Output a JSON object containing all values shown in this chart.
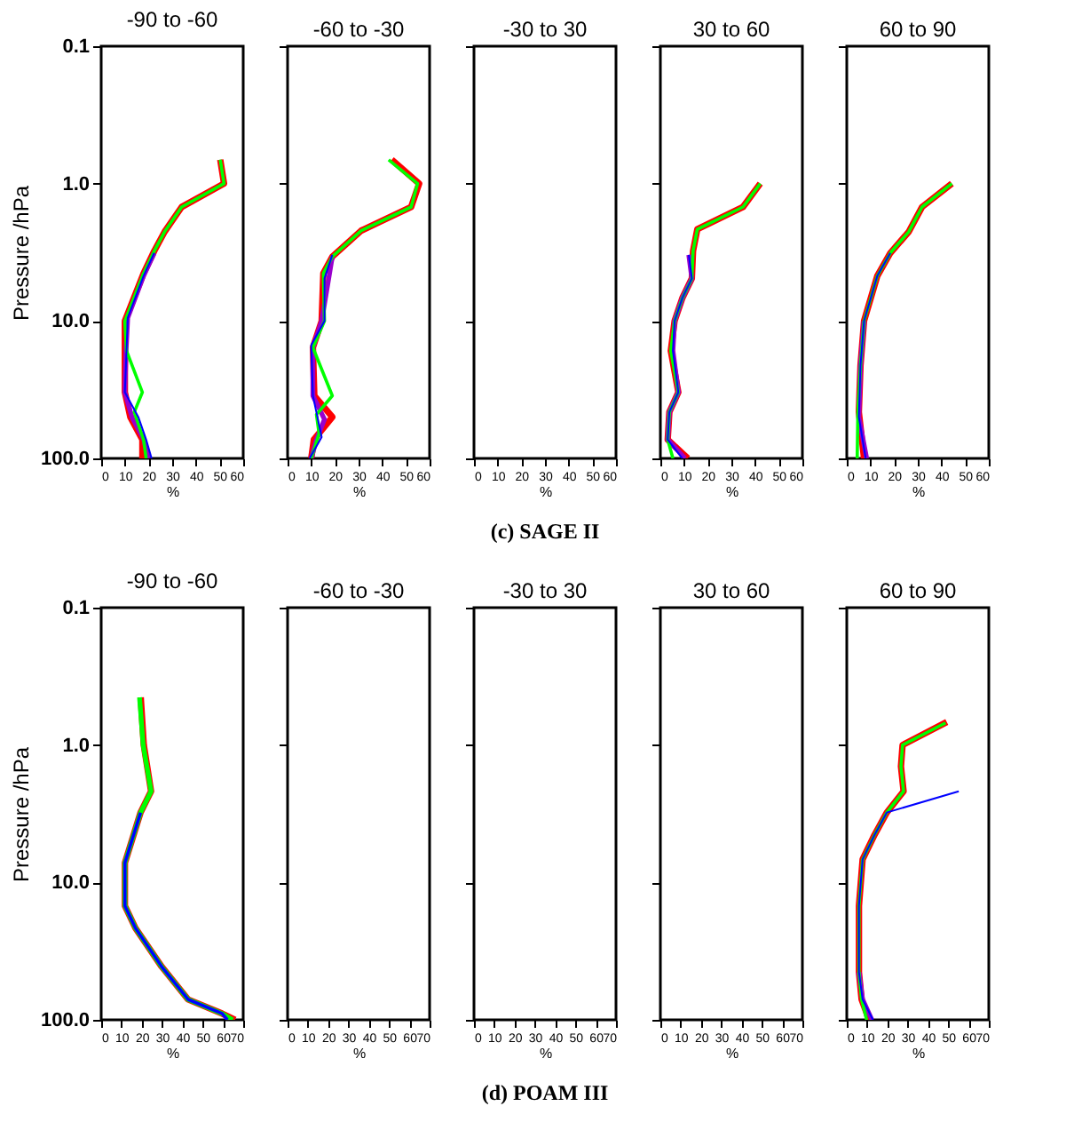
{
  "chart_data": [
    {
      "type": "line",
      "title": "-90 to -60",
      "xlabel": "%",
      "ylabel": "Pressure /hPa",
      "log": "y",
      "xlim": [
        0,
        60
      ],
      "xticks": [
        0,
        10,
        20,
        30,
        40,
        50,
        60
      ],
      "ylim": [
        100,
        0.1
      ],
      "yticks": [
        0.1,
        {
          "value": 1,
          "label": "1.0"
        },
        {
          "value": 10,
          "label": "10.0"
        },
        {
          "value": 100,
          "label": "100.0"
        }
      ],
      "series": [
        {
          "color": "#ff0000",
          "x": [
            50.3,
            51.9,
            34,
            26.8,
            22.4,
            17.9,
            10,
            10,
            12.3,
            17.4,
            17.4
          ],
          "values": [
            0.67,
            1,
            1.48,
            2.24,
            3.1,
            4.5,
            10,
            33,
            50,
            73,
            100
          ]
        },
        {
          "color": "#9900cc",
          "x": [
            22.4,
            17.9,
            11.2,
            10.5,
            10,
            13,
            18,
            20
          ],
          "values": [
            3.2,
            4.7,
            9.5,
            16.5,
            33,
            50,
            73,
            100
          ]
        },
        {
          "color": "#00ff00",
          "x": [
            50.3,
            51.9,
            34,
            26.8,
            22.4,
            17.9,
            10,
            10.7,
            17.4,
            14,
            17.9,
            19
          ],
          "values": [
            0.67,
            1,
            1.48,
            2.24,
            3.1,
            4.5,
            10,
            16.5,
            33,
            46,
            73,
            100
          ]
        },
        {
          "color": "#0000ff",
          "x": [
            22.4,
            17.9,
            11.2,
            10.7,
            10,
            15.7,
            19,
            21.3
          ],
          "values": [
            3.2,
            4.7,
            9.5,
            16.5,
            33,
            50,
            73,
            100
          ]
        }
      ]
    },
    {
      "type": "line",
      "title": "-60 to -30",
      "xlabel": "%",
      "log": "y",
      "tick_labels": "x",
      "xlim": [
        0,
        60
      ],
      "xticks": [
        0,
        10,
        20,
        30,
        40,
        50,
        60
      ],
      "ylim": [
        100,
        0.1
      ],
      "yticks": [
        0.1,
        1,
        10,
        100
      ],
      "series": [
        {
          "color": "#ff0000",
          "x": [
            44,
            55.6,
            52.2,
            31.1,
            18.9,
            15.1,
            14.4,
            10.7,
            11.3,
            18.9,
            11.1,
            10
          ],
          "values": [
            0.67,
            1,
            1.48,
            2.2,
            3.4,
            4.5,
            10,
            15.6,
            35,
            50,
            73,
            100
          ]
        },
        {
          "color": "#9900cc",
          "x": [
            18.9,
            14.4,
            10.7,
            10.7,
            15.6,
            12.2,
            10
          ],
          "values": [
            3.4,
            10,
            15.6,
            35,
            52,
            73,
            100
          ]
        },
        {
          "color": "#00ff00",
          "x": [
            42.7,
            54.9,
            52.2,
            31.1,
            18.9,
            15.1,
            15.6,
            10.7,
            18.9,
            12.2,
            13.3,
            10
          ],
          "values": [
            0.67,
            1,
            1.48,
            2.2,
            3.4,
            4.5,
            10,
            15.6,
            35,
            48,
            66,
            100
          ]
        },
        {
          "color": "#0000ff",
          "x": [
            18.9,
            15.6,
            15.6,
            10,
            10.7,
            14.4,
            9.3
          ],
          "values": [
            3.3,
            4.9,
            10,
            15,
            35,
            70,
            100
          ]
        }
      ]
    },
    {
      "type": "line",
      "title": "-30 to 30",
      "xlabel": "%",
      "log": "y",
      "tick_labels": "x",
      "xlim": [
        0,
        60
      ],
      "xticks": [
        0,
        10,
        20,
        30,
        40,
        50,
        60
      ],
      "ylim": [
        100,
        0.1
      ],
      "yticks": [
        0.1,
        1,
        10,
        100
      ],
      "annotations": [
        "(c) SAGE II"
      ]
    },
    {
      "type": "line",
      "title": "30 to 60",
      "xlabel": "%",
      "log": "y",
      "tick_labels": "x",
      "xlim": [
        0,
        60
      ],
      "xticks": [
        0,
        10,
        20,
        30,
        40,
        50,
        60
      ],
      "ylim": [
        100,
        0.1
      ],
      "yticks": [
        0.1,
        1,
        10,
        100
      ],
      "series": [
        {
          "color": "#ff0000",
          "x": [
            42.2,
            34.9,
            15.6,
            13.8,
            13.3,
            9.3,
            6,
            4.4,
            7.6,
            3.8,
            3.1,
            11.6
          ],
          "values": [
            1,
            1.48,
            2.15,
            3.1,
            4.9,
            6.8,
            10,
            16.5,
            33,
            46,
            73,
            100
          ]
        },
        {
          "color": "#9900cc",
          "x": [
            12,
            13.3,
            9.3,
            6,
            5.3,
            7.6,
            3.8,
            3.1,
            10.4
          ],
          "values": [
            3.3,
            4.9,
            6.8,
            10,
            16.5,
            33,
            46,
            73,
            100
          ]
        },
        {
          "color": "#00ff00",
          "x": [
            42.2,
            34.9,
            15.6,
            13.8,
            13.3,
            9.3,
            6,
            4.4,
            7.6,
            3.8,
            3.1,
            5.3
          ],
          "values": [
            1,
            1.48,
            2.15,
            3.1,
            4.9,
            6.8,
            10,
            16.5,
            33,
            46,
            73,
            100
          ]
        },
        {
          "color": "#0000ff",
          "x": [
            12,
            13.3,
            9.3,
            6,
            5.3,
            7.6,
            3.8,
            3.1,
            9.3
          ],
          "values": [
            3.3,
            4.9,
            6.8,
            10,
            16.5,
            33,
            46,
            73,
            100
          ]
        }
      ]
    },
    {
      "type": "line",
      "title": "60 to 90",
      "xlabel": "%",
      "log": "y",
      "tick_labels": "x",
      "xlim": [
        0,
        60
      ],
      "xticks": [
        0,
        10,
        20,
        30,
        40,
        50,
        60
      ],
      "ylim": [
        100,
        0.1
      ],
      "yticks": [
        0.1,
        1,
        10,
        100
      ],
      "series": [
        {
          "color": "#ff0000",
          "x": [
            44.4,
            31.8,
            26.2,
            18.4,
            12.9,
            7.3,
            5.8,
            5.1,
            7.3
          ],
          "values": [
            1,
            1.48,
            2.24,
            3.2,
            4.7,
            10,
            21,
            46,
            100
          ]
        },
        {
          "color": "#9900cc",
          "x": [
            7.3,
            5.8,
            5.1,
            8.4
          ],
          "values": [
            10,
            21,
            50,
            100
          ]
        },
        {
          "color": "#00ff00",
          "x": [
            44.4,
            31.8,
            26.2,
            18.4,
            12.9,
            7.3,
            5.8,
            4.7,
            4.4
          ],
          "values": [
            1,
            1.48,
            2.24,
            3.2,
            4.7,
            10,
            21,
            46,
            100
          ]
        },
        {
          "color": "#0000ff",
          "x": [
            18.4,
            12.9,
            7.3,
            5.8,
            5.1,
            8
          ],
          "values": [
            3.2,
            4.7,
            10,
            21,
            50,
            100
          ]
        }
      ]
    },
    {
      "type": "line",
      "title": "-90 to -60",
      "xlabel": "%",
      "ylabel": "Pressure /hPa",
      "log": "y",
      "xlim": [
        0,
        70
      ],
      "xticks": [
        0,
        10,
        20,
        30,
        40,
        50,
        60,
        70
      ],
      "ylim": [
        100,
        0.1
      ],
      "yticks": [
        0.1,
        {
          "value": 1,
          "label": "1.0"
        },
        {
          "value": 10,
          "label": "10.0"
        },
        {
          "value": 100,
          "label": "100.0"
        }
      ],
      "series": [
        {
          "color": "#ff0000",
          "x": [
            19.5,
            21,
            24.6,
            19.4,
            11.7,
            11.7,
            16.9,
            29.8,
            42.8,
            59.6,
            66
          ],
          "values": [
            0.45,
            1,
            2.17,
            3.1,
            7.2,
            14.8,
            21.5,
            41,
            71,
            90,
            100
          ]
        },
        {
          "color": "#00ff00",
          "x": [
            18.9,
            20.7,
            24.6,
            19.4,
            11.7,
            11.7,
            16.9,
            29.8,
            42.8,
            59.6,
            64.8
          ],
          "values": [
            0.45,
            1,
            2.17,
            3.1,
            7.2,
            14.8,
            21.5,
            41,
            71,
            90,
            100
          ]
        },
        {
          "color": "#0000ff",
          "x": [
            19.4,
            11.7,
            11.7,
            16.9,
            29.8,
            42.8,
            59.6,
            62.2
          ],
          "values": [
            3.1,
            7.2,
            14.8,
            21.5,
            41,
            71,
            90,
            100
          ]
        }
      ]
    },
    {
      "type": "line",
      "title": "-60 to -30",
      "xlabel": "%",
      "log": "y",
      "tick_labels": "x",
      "xlim": [
        0,
        70
      ],
      "xticks": [
        0,
        10,
        20,
        30,
        40,
        50,
        60,
        70
      ],
      "ylim": [
        100,
        0.1
      ],
      "yticks": [
        0.1,
        1,
        10,
        100
      ]
    },
    {
      "type": "line",
      "title": "-30 to 30",
      "xlabel": "%",
      "log": "y",
      "tick_labels": "x",
      "xlim": [
        0,
        70
      ],
      "xticks": [
        0,
        10,
        20,
        30,
        40,
        50,
        60,
        70
      ],
      "ylim": [
        100,
        0.1
      ],
      "yticks": [
        0.1,
        1,
        10,
        100
      ],
      "annotations": [
        "(d) POAM III"
      ]
    },
    {
      "type": "line",
      "title": "30 to 60",
      "xlabel": "%",
      "log": "y",
      "tick_labels": "x",
      "xlim": [
        0,
        70
      ],
      "xticks": [
        0,
        10,
        20,
        30,
        40,
        50,
        60,
        70
      ],
      "ylim": [
        100,
        0.1
      ],
      "yticks": [
        0.1,
        1,
        10,
        100
      ]
    },
    {
      "type": "line",
      "title": "60 to 90",
      "xlabel": "%",
      "log": "y",
      "tick_labels": "x",
      "xlim": [
        0,
        70
      ],
      "xticks": [
        0,
        10,
        20,
        30,
        40,
        50,
        60,
        70
      ],
      "ylim": [
        100,
        0.1
      ],
      "yticks": [
        0.1,
        1,
        10,
        100
      ],
      "series": [
        {
          "color": "#ff0000",
          "x": [
            49.3,
            27.5,
            26.7,
            28,
            19.7,
            13.7,
            7.8,
            6,
            6,
            7.3,
            11
          ],
          "values": [
            0.68,
            1,
            1.43,
            2.17,
            3.1,
            4.5,
            6.8,
            14.8,
            45,
            71,
            100
          ]
        },
        {
          "color": "#9900cc",
          "x": [
            6,
            7.8,
            12.4
          ],
          "values": [
            45,
            71,
            100
          ]
        },
        {
          "color": "#00ff00",
          "x": [
            48.7,
            27.5,
            26.7,
            28,
            19.7,
            13.7,
            7.8,
            6,
            6,
            7.3,
            9.8
          ],
          "values": [
            0.69,
            1,
            1.43,
            2.17,
            3.1,
            4.5,
            6.8,
            14.8,
            45,
            71,
            100
          ]
        },
        {
          "color": "#0000ff",
          "x": [
            55.2,
            19.7,
            13.7,
            7.8,
            6,
            6,
            7.8,
            12.9
          ],
          "values": [
            2.17,
            3.1,
            4.5,
            6.8,
            14.8,
            45,
            71,
            100
          ]
        }
      ]
    }
  ]
}
